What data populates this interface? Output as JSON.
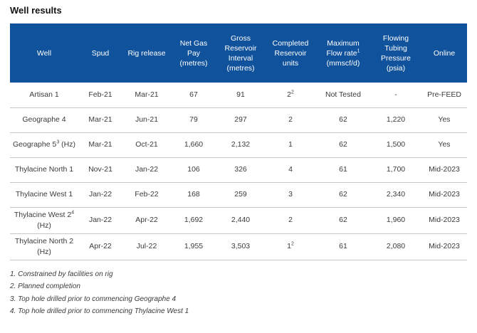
{
  "title": "Well results",
  "colors": {
    "header_bg": "#10529c",
    "header_text": "#ffffff",
    "body_text": "#3b3b3b",
    "divider": "#c8c8c8"
  },
  "table": {
    "headers": [
      {
        "text": "Well"
      },
      {
        "text": "Spud"
      },
      {
        "text": "Rig release"
      },
      {
        "text": "Net Gas Pay",
        "unit": "(metres)"
      },
      {
        "text": "Gross Reservoir Interval",
        "unit": "(metres)"
      },
      {
        "text": "Completed Reservoir units"
      },
      {
        "text": "Maximum Flow rate",
        "sup": "1",
        "unit": "(mmscf/d)"
      },
      {
        "text": "Flowing Tubing Pressure",
        "unit": "(psia)"
      },
      {
        "text": "Online"
      }
    ],
    "rows": [
      {
        "well": "Artisan 1",
        "spud": "Feb-21",
        "rig_release": "Mar-21",
        "net_gas_pay": "67",
        "gross_interval": "91",
        "units": "2",
        "units_sup": "2",
        "max_flow": "Not Tested",
        "pressure": "-",
        "online": "Pre-FEED"
      },
      {
        "well": "Geographe 4",
        "spud": "Mar-21",
        "rig_release": "Jun-21",
        "net_gas_pay": "79",
        "gross_interval": "297",
        "units": "2",
        "max_flow": "62",
        "pressure": "1,220",
        "online": "Yes"
      },
      {
        "well": "Geographe 5",
        "well_sup": "3",
        "well_suffix": " (Hz)",
        "spud": "Mar-21",
        "rig_release": "Oct-21",
        "net_gas_pay": "1,660",
        "gross_interval": "2,132",
        "units": "1",
        "max_flow": "62",
        "pressure": "1,500",
        "online": "Yes"
      },
      {
        "well": "Thylacine North 1",
        "spud": "Nov-21",
        "rig_release": "Jan-22",
        "net_gas_pay": "106",
        "gross_interval": "326",
        "units": "4",
        "max_flow": "61",
        "pressure": "1,700",
        "online": "Mid-2023"
      },
      {
        "well": "Thylacine West 1",
        "spud": "Jan-22",
        "rig_release": "Feb-22",
        "net_gas_pay": "168",
        "gross_interval": "259",
        "units": "3",
        "max_flow": "62",
        "pressure": "2,340",
        "online": "Mid-2023"
      },
      {
        "well": "Thylacine West 2",
        "well_sup": "4",
        "well_suffix": " (Hz)",
        "spud": "Jan-22",
        "rig_release": "Apr-22",
        "net_gas_pay": "1,692",
        "gross_interval": "2,440",
        "units": "2",
        "max_flow": "62",
        "pressure": "1,960",
        "online": "Mid-2023"
      },
      {
        "well": "Thylacine North 2 (Hz)",
        "spud": "Apr-22",
        "rig_release": "Jul-22",
        "net_gas_pay": "1,955",
        "gross_interval": "3,503",
        "units": "1",
        "units_sup": "2",
        "max_flow": "61",
        "pressure": "2,080",
        "online": "Mid-2023"
      }
    ]
  },
  "footnotes": [
    "1. Constrained by facilities on rig",
    "2. Planned completion",
    "3. Top hole drilled prior to commencing Geographe 4",
    "4. Top hole drilled prior to commencing Thylacine West 1"
  ]
}
